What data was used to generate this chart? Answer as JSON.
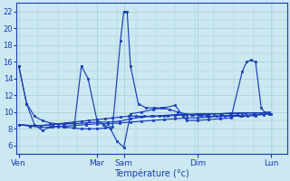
{
  "xlabel": "Température (°c)",
  "background_color": "#cce8f0",
  "grid_color": "#a8cdd8",
  "line_color": "#1a3eb5",
  "x_tick_labels": [
    "Ven",
    "Mar",
    "Sam",
    "Dim",
    "Lun"
  ],
  "x_tick_positions": [
    0.0,
    3.5,
    4.7,
    8.0,
    11.3
  ],
  "ylim": [
    5.0,
    23.0
  ],
  "xlim": [
    -0.1,
    12.0
  ],
  "yticks": [
    6,
    8,
    10,
    12,
    14,
    16,
    18,
    20,
    22
  ],
  "lines": [
    {
      "x": [
        0.0,
        0.35,
        0.7,
        1.05,
        1.4,
        1.75,
        2.1,
        2.45,
        2.8,
        3.15,
        3.5,
        3.85,
        4.2,
        4.55,
        4.9,
        5.25,
        5.6,
        5.95,
        6.3,
        6.65,
        7.0,
        7.35,
        7.7,
        8.05,
        8.4,
        8.75,
        9.1,
        9.45,
        9.8,
        10.15,
        10.5,
        10.85,
        11.2
      ],
      "y": [
        15.5,
        11.0,
        9.5,
        9.0,
        8.7,
        8.6,
        8.7,
        8.8,
        8.9,
        9.0,
        9.1,
        9.2,
        9.3,
        9.4,
        9.5,
        9.5,
        9.5,
        9.5,
        9.5,
        9.5,
        9.6,
        9.6,
        9.7,
        9.7,
        9.7,
        9.8,
        9.8,
        9.8,
        9.8,
        9.9,
        9.9,
        9.9,
        10.0
      ]
    },
    {
      "x": [
        0.0,
        0.35,
        0.7,
        1.05,
        1.4,
        1.75,
        2.1,
        2.45,
        2.8,
        3.15,
        3.5,
        3.85,
        4.2,
        4.55,
        4.7,
        4.85,
        5.0,
        5.35,
        5.7,
        6.05,
        6.4,
        6.75,
        7.1,
        7.45,
        7.8,
        8.15,
        8.5,
        8.85,
        9.2,
        9.55,
        9.9,
        10.25,
        10.6,
        10.95,
        11.3
      ],
      "y": [
        15.5,
        11.0,
        8.5,
        7.8,
        8.2,
        8.3,
        8.2,
        8.1,
        8.0,
        8.0,
        8.0,
        8.1,
        8.3,
        18.5,
        22.0,
        22.0,
        15.5,
        11.0,
        10.5,
        10.5,
        10.5,
        10.3,
        10.0,
        9.8,
        9.7,
        9.6,
        9.5,
        9.5,
        9.5,
        9.5,
        9.5,
        9.5,
        9.6,
        9.7,
        9.8
      ]
    },
    {
      "x": [
        0.0,
        0.5,
        1.0,
        1.5,
        2.0,
        2.5,
        3.0,
        3.5,
        4.0,
        4.5,
        5.0,
        5.5,
        6.0,
        6.5,
        7.0,
        7.5,
        8.0,
        8.5,
        9.0,
        9.5,
        10.0,
        10.5,
        11.2
      ],
      "y": [
        8.5,
        8.3,
        8.2,
        8.2,
        8.3,
        8.4,
        8.5,
        8.6,
        8.6,
        8.7,
        8.8,
        8.9,
        9.0,
        9.1,
        9.2,
        9.3,
        9.3,
        9.4,
        9.5,
        9.6,
        9.6,
        9.7,
        9.8
      ]
    },
    {
      "x": [
        0.0,
        0.5,
        1.0,
        1.5,
        2.0,
        2.5,
        2.8,
        3.1,
        3.5,
        3.8,
        4.1,
        4.4,
        4.7,
        5.0,
        5.5,
        6.0,
        6.5,
        7.0,
        7.5,
        8.0,
        8.5,
        9.0,
        9.5,
        10.0,
        10.2,
        10.4,
        10.6,
        10.85,
        11.0,
        11.2
      ],
      "y": [
        8.5,
        8.4,
        8.4,
        8.5,
        8.6,
        8.7,
        15.5,
        14.0,
        9.0,
        8.5,
        8.0,
        6.5,
        5.8,
        9.8,
        10.0,
        10.3,
        10.5,
        10.8,
        9.0,
        9.0,
        9.1,
        9.2,
        9.3,
        14.8,
        16.0,
        16.2,
        16.0,
        10.5,
        10.0,
        9.8
      ]
    },
    {
      "x": [
        0.0,
        0.5,
        1.0,
        1.5,
        2.0,
        2.5,
        3.0,
        3.5,
        4.0,
        4.5,
        5.0,
        5.5,
        6.0,
        6.5,
        7.0,
        7.5,
        8.0,
        8.5,
        9.0,
        9.5,
        10.0,
        10.5,
        11.2
      ],
      "y": [
        8.5,
        8.4,
        8.4,
        8.5,
        8.6,
        8.6,
        8.7,
        8.8,
        8.8,
        8.9,
        9.2,
        9.4,
        9.5,
        9.6,
        9.7,
        9.7,
        9.8,
        9.8,
        9.8,
        9.9,
        9.9,
        9.9,
        9.9
      ]
    }
  ]
}
